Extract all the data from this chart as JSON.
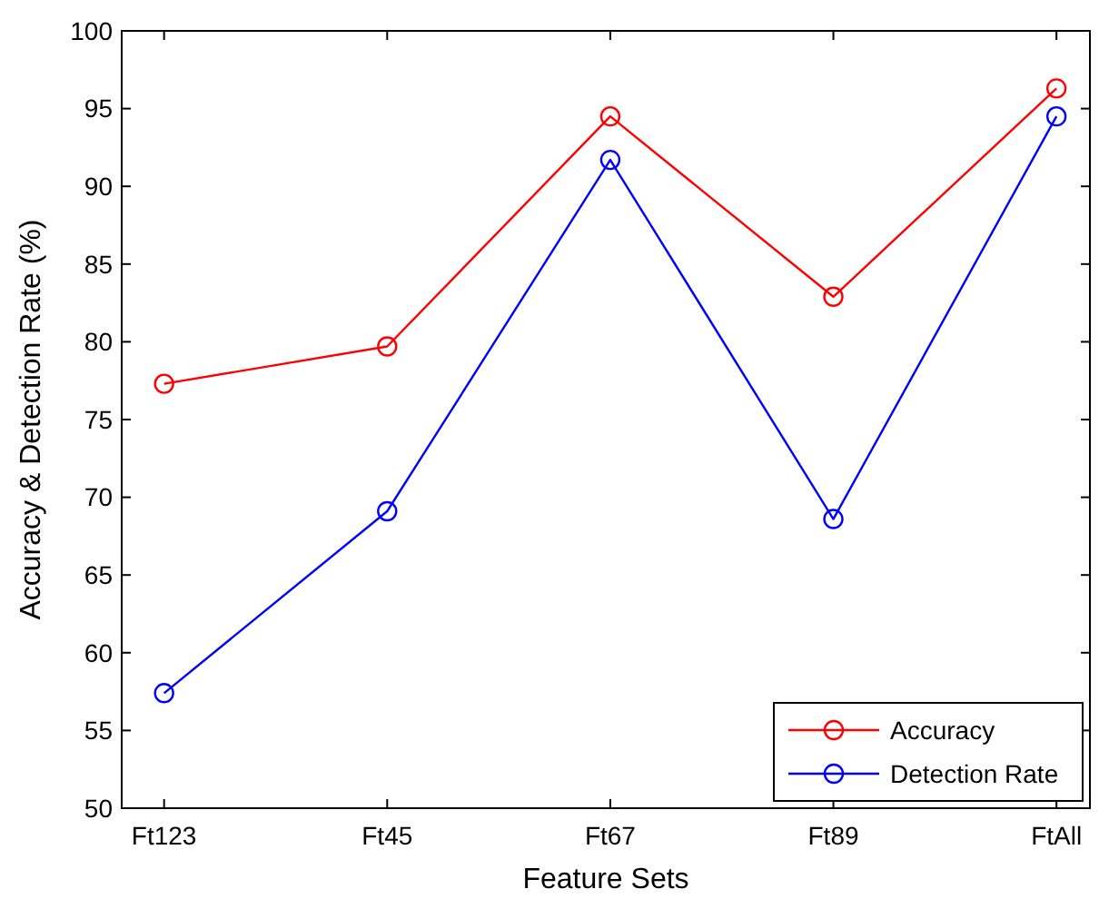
{
  "chart_data": {
    "type": "line",
    "xlabel": "Feature Sets",
    "ylabel": "Accuracy & Detection Rate (%)",
    "categories": [
      "Ft123",
      "Ft45",
      "Ft67",
      "Ft89",
      "FtAll"
    ],
    "series": [
      {
        "name": "Accuracy",
        "color": "#ff0000",
        "values": [
          77.3,
          79.7,
          94.5,
          82.9,
          96.3
        ]
      },
      {
        "name": "Detection Rate",
        "color": "#0000ff",
        "values": [
          57.4,
          69.1,
          91.7,
          68.6,
          94.5
        ]
      }
    ],
    "ylim": [
      50,
      100
    ],
    "yticks": [
      50,
      55,
      60,
      65,
      70,
      75,
      80,
      85,
      90,
      95,
      100
    ],
    "grid": false,
    "legend": "bottom right",
    "marker": "circle",
    "line_style": "solid"
  }
}
